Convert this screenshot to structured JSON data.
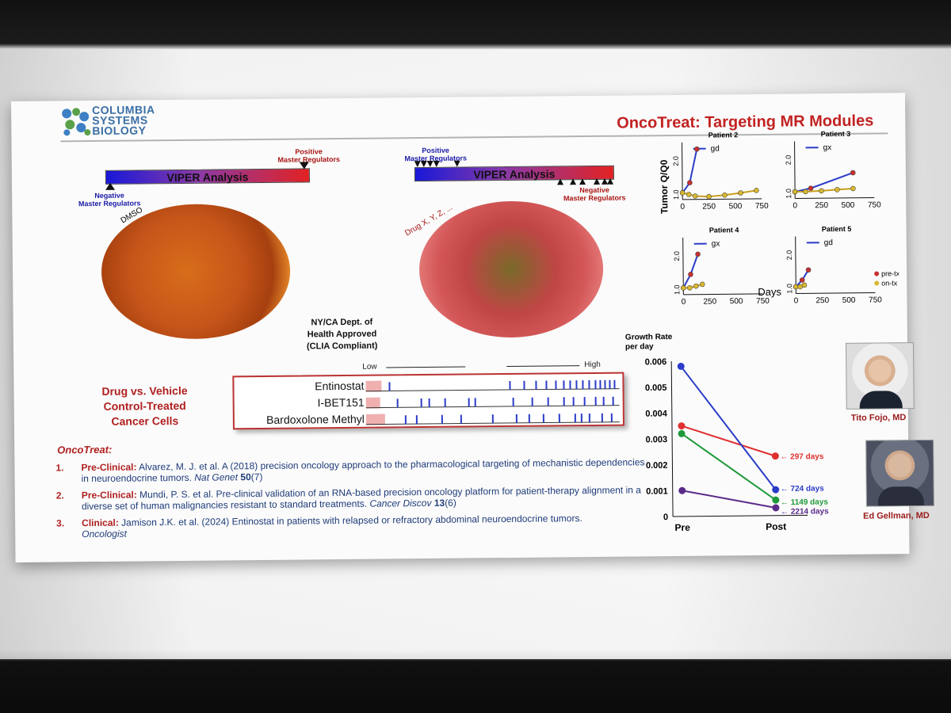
{
  "logo": {
    "line1": "COLUMBIA",
    "line2": "SYSTEMS",
    "line3": "BIOLOGY"
  },
  "title": "OncoTreat: Targeting MR Modules",
  "left_viper": {
    "bar_label": "VIPER Analysis",
    "pos_label_1": "Positive",
    "pos_label_2": "Master Regulators",
    "neg_label_1": "Negative",
    "neg_label_2": "Master Regulators",
    "cell_label": "DMSO"
  },
  "right_viper": {
    "bar_label": "VIPER Analysis",
    "pos_label_1": "Positive",
    "pos_label_2": "Master Regulators",
    "neg_label_1": "Negative",
    "neg_label_2": "Master Regulators",
    "cell_label": "Drug X, Y, Z, ..."
  },
  "approved": {
    "line1": "NY/CA Dept. of",
    "line2": "Health Approved",
    "line3": "(CLIA Compliant)"
  },
  "drug_vehicle": {
    "line1": "Drug vs. Vehicle",
    "line2": "Control-Treated",
    "line3": "Cancer Cells"
  },
  "heatmap": {
    "low": "Low",
    "high": "High",
    "rows": [
      {
        "name": "Entinostat"
      },
      {
        "name": "I-BET151"
      },
      {
        "name": "Bardoxolone Methyl"
      }
    ]
  },
  "refs": {
    "heading": "OncoTreat:",
    "items": [
      {
        "num": "1.",
        "tag": "Pre-Clinical:",
        "body": "Alvarez, M. J. et al. A (2018) precision oncology approach to the pharmacological targeting of mechanistic dependencies in neuroendocrine tumors.",
        "journal": "Nat Genet",
        "vol": "50",
        "issue": "(7)"
      },
      {
        "num": "2.",
        "tag": "Pre-Clinical:",
        "body": "Mundi, P. S. et al. Pre-clinical validation of an RNA-based precision oncology platform for patient-therapy alignment in a diverse set of human malignancies resistant to standard treatments.",
        "journal": "Cancer Discov",
        "vol": "13",
        "issue": "(6)"
      },
      {
        "num": "3.",
        "tag": "Clinical:",
        "body": "Jamison J.K. et al. (2024) Entinostat in patients with relapsed or refractory abdominal neuroendocrine tumors.",
        "journal": "Oncologist",
        "vol": "",
        "issue": ""
      }
    ]
  },
  "tumor_charts": {
    "ylabel": "Tumor Q/Q0",
    "xlabel": "Days",
    "legend_pre": "pre-tx",
    "legend_on": "on-tx",
    "panels": [
      {
        "title": "Patient 2",
        "code": "gd"
      },
      {
        "title": "Patient 3",
        "code": "gx"
      },
      {
        "title": "Patient 4",
        "code": "gx"
      },
      {
        "title": "Patient 5",
        "code": "gd"
      }
    ],
    "xticks": [
      "0",
      "250",
      "500",
      "750"
    ],
    "yticks": [
      "1.0",
      "2.0"
    ]
  },
  "growth": {
    "ylabel_1": "Growth Rate",
    "ylabel_2": "per day",
    "x_pre": "Pre",
    "x_post": "Post",
    "yticks": [
      "0.006",
      "0.005",
      "0.004",
      "0.003",
      "0.002",
      "0.001",
      "0"
    ],
    "labels": [
      "← 297 days",
      "← 724 days",
      "← 1149 days",
      "← 2214 days"
    ]
  },
  "people": {
    "p1": "Tito Fojo, MD",
    "p2": "Ed Gellman, MD"
  },
  "colors": {
    "title_red": "#c22222",
    "ref_blue": "#1f3c7a",
    "red_series": "#e03030",
    "blue_series": "#2a3cc8",
    "green_series": "#1f9a3a",
    "purple_series": "#5a2a8a"
  },
  "chart_data": [
    {
      "type": "line",
      "title": "Patient 2",
      "xlabel": "Days",
      "ylabel": "Tumor Q/Q0",
      "series": [
        {
          "name": "pre-tx",
          "x": [
            0,
            70,
            140
          ],
          "y": [
            1.0,
            1.3,
            2.3
          ]
        },
        {
          "name": "on-tx",
          "x": [
            0,
            60,
            120,
            250,
            400,
            550,
            700
          ],
          "y": [
            1.0,
            0.95,
            0.9,
            0.88,
            0.92,
            0.98,
            1.05
          ]
        }
      ],
      "xlim": [
        0,
        750
      ],
      "ylim": [
        0.8,
        2.5
      ]
    },
    {
      "type": "line",
      "title": "Patient 3",
      "xlabel": "Days",
      "ylabel": "Tumor Q/Q0",
      "series": [
        {
          "name": "pre-tx",
          "x": [
            0,
            150,
            550
          ],
          "y": [
            1.0,
            1.1,
            1.55
          ]
        },
        {
          "name": "on-tx",
          "x": [
            0,
            100,
            250,
            400,
            550
          ],
          "y": [
            1.0,
            1.0,
            1.02,
            1.05,
            1.08
          ]
        }
      ],
      "xlim": [
        0,
        750
      ],
      "ylim": [
        0.8,
        2.5
      ]
    },
    {
      "type": "line",
      "title": "Patient 4",
      "xlabel": "Days",
      "ylabel": "Tumor Q/Q0",
      "series": [
        {
          "name": "pre-tx",
          "x": [
            0,
            70,
            140
          ],
          "y": [
            1.0,
            1.4,
            2.0
          ]
        },
        {
          "name": "on-tx",
          "x": [
            0,
            60,
            120,
            180
          ],
          "y": [
            1.0,
            1.0,
            1.05,
            1.1
          ]
        }
      ],
      "xlim": [
        0,
        750
      ],
      "ylim": [
        0.8,
        2.5
      ]
    },
    {
      "type": "line",
      "title": "Patient 5",
      "xlabel": "Days",
      "ylabel": "Tumor Q/Q0",
      "series": [
        {
          "name": "pre-tx",
          "x": [
            0,
            60,
            120
          ],
          "y": [
            1.0,
            1.2,
            1.5
          ]
        },
        {
          "name": "on-tx",
          "x": [
            0,
            40,
            80
          ],
          "y": [
            1.0,
            1.0,
            1.05
          ]
        }
      ],
      "xlim": [
        0,
        750
      ],
      "ylim": [
        0.8,
        2.5
      ]
    },
    {
      "type": "line",
      "title": "",
      "xlabel": "",
      "ylabel": "Growth Rate per day",
      "categories": [
        "Pre",
        "Post"
      ],
      "series": [
        {
          "name": "297 days",
          "color": "#e03030",
          "values": [
            0.0035,
            0.0023
          ]
        },
        {
          "name": "724 days",
          "color": "#2a3cc8",
          "values": [
            0.0058,
            0.001
          ]
        },
        {
          "name": "1149 days",
          "color": "#1f9a3a",
          "values": [
            0.0032,
            0.0006
          ]
        },
        {
          "name": "2214 days",
          "color": "#5a2a8a",
          "values": [
            0.001,
            0.0003
          ]
        }
      ],
      "ylim": [
        0,
        0.006
      ]
    }
  ]
}
